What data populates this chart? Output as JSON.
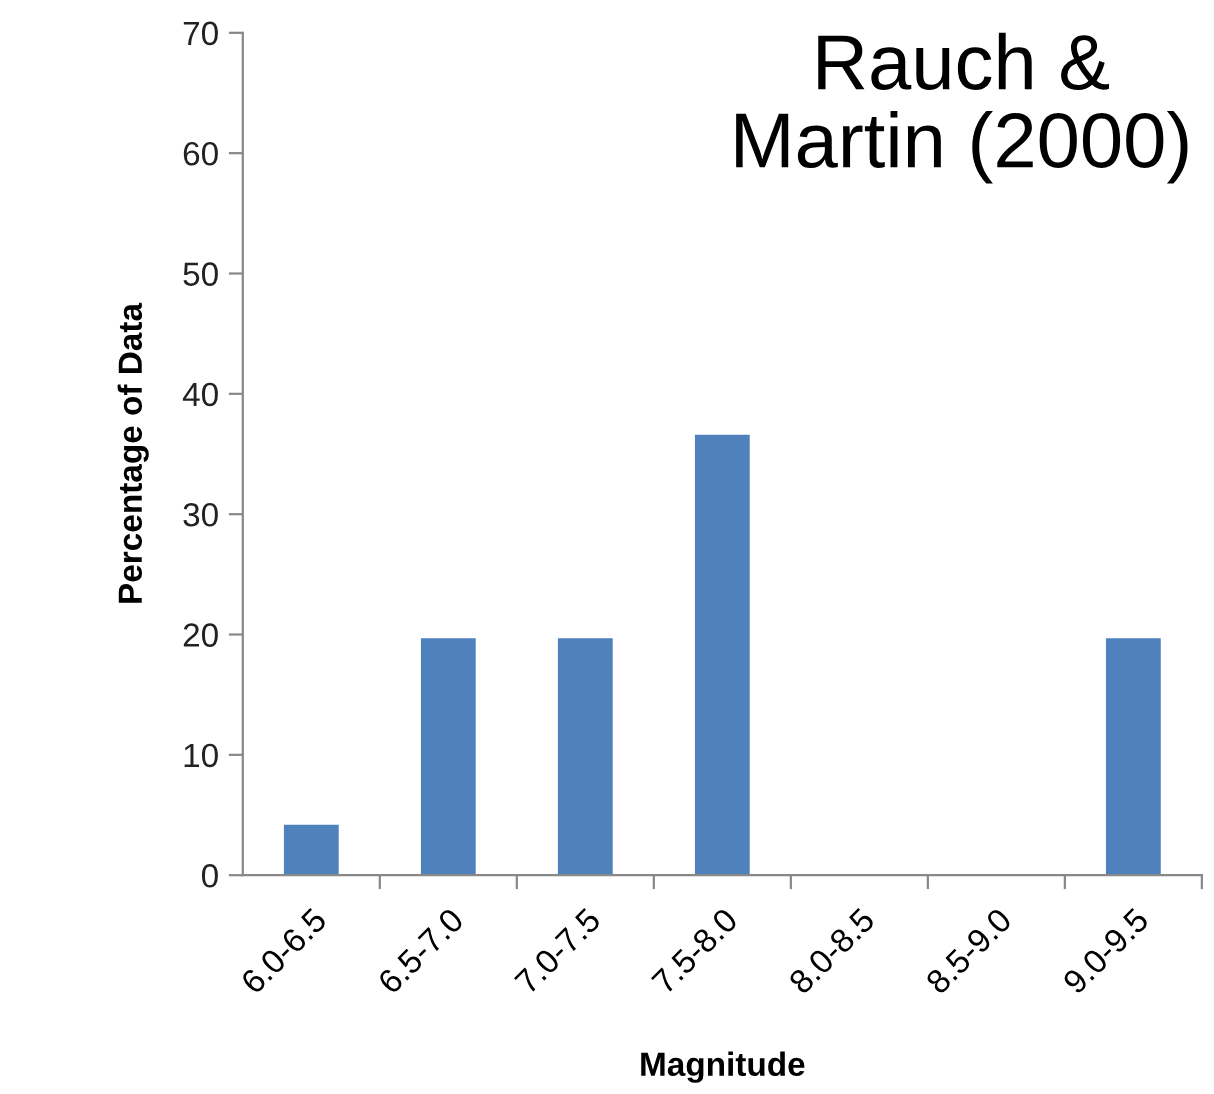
{
  "chart_data": {
    "type": "bar",
    "title": "Rauch &\nMartin (2000)",
    "xlabel": "Magnitude",
    "ylabel": "Percentage of Data",
    "categories": [
      "6.0-6.5",
      "6.5-7.0",
      "7.0-7.5",
      "7.5-8.0",
      "8.0-8.5",
      "8.5-9.0",
      "9.0-9.5"
    ],
    "values": [
      4.2,
      19.7,
      19.7,
      36.6,
      0,
      0,
      19.7
    ],
    "color": "#4f81bd",
    "ylim": [
      0,
      70
    ],
    "yticks": [
      0,
      10,
      20,
      30,
      40,
      50,
      60,
      70
    ],
    "grid": false
  }
}
